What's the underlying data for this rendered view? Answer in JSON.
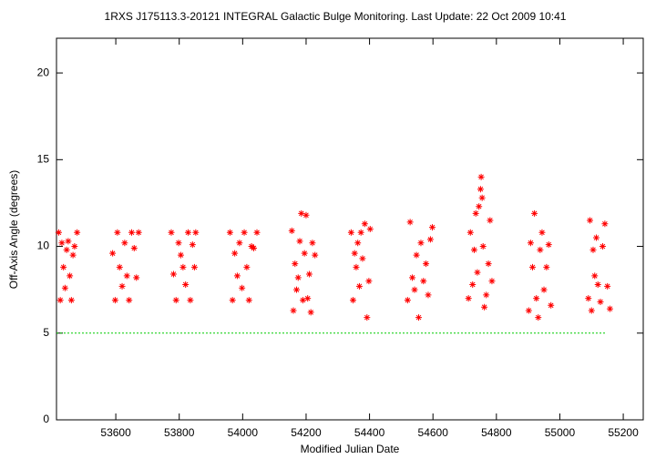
{
  "chart_data": {
    "type": "scatter",
    "title": "1RXS J175113.3-20121   INTEGRAL Galactic Bulge Monitoring.  Last Update: 22 Oct 2009 10:41",
    "x_label": "Modified Julian Date",
    "y_label": "Off-Axis Angle (degrees)",
    "xlim": [
      53413,
      55263
    ],
    "ylim": [
      0,
      22
    ],
    "xticks": [
      53600,
      53800,
      54000,
      54200,
      54400,
      54600,
      54800,
      55000,
      55200
    ],
    "yticks": [
      0,
      5,
      10,
      15,
      20
    ],
    "grid": false,
    "reference_line": {
      "y": 5,
      "x": [
        53413,
        55146
      ],
      "color": "#00cc00"
    },
    "series": [
      {
        "color": "#ff0000",
        "x": [
          53420,
          53425,
          53430,
          53435,
          53440,
          53445,
          53450,
          53455,
          53460,
          53465,
          53470,
          53478,
          53590,
          53598,
          53605,
          53612,
          53620,
          53628,
          53635,
          53642,
          53650,
          53658,
          53665,
          53672,
          53775,
          53782,
          53790,
          53798,
          53805,
          53812,
          53820,
          53828,
          53835,
          53842,
          53848,
          53852,
          53960,
          53968,
          53975,
          53983,
          53990,
          53998,
          54005,
          54013,
          54020,
          54028,
          54035,
          54045,
          54155,
          54160,
          54165,
          54170,
          54175,
          54180,
          54185,
          54190,
          54195,
          54200,
          54205,
          54210,
          54215,
          54220,
          54228,
          54342,
          54348,
          54353,
          54358,
          54363,
          54368,
          54373,
          54378,
          54385,
          54392,
          54398,
          54402,
          54520,
          54528,
          54535,
          54542,
          54548,
          54555,
          54562,
          54570,
          54578,
          54585,
          54592,
          54598,
          54712,
          54718,
          54725,
          54730,
          54735,
          54740,
          54745,
          54750,
          54752,
          54755,
          54758,
          54762,
          54768,
          54775,
          54780,
          54786,
          54902,
          54908,
          54914,
          54920,
          54926,
          54932,
          54938,
          54944,
          54950,
          54958,
          54965,
          54972,
          55090,
          55095,
          55100,
          55105,
          55110,
          55115,
          55120,
          55128,
          55135,
          55142,
          55150,
          55158
        ],
        "values": [
          10.8,
          6.9,
          10.2,
          8.8,
          7.6,
          9.8,
          10.3,
          8.3,
          6.9,
          9.5,
          10.0,
          10.8,
          9.6,
          6.9,
          10.8,
          8.8,
          7.7,
          10.2,
          8.3,
          6.9,
          10.8,
          9.9,
          8.2,
          10.8,
          10.8,
          8.4,
          6.9,
          10.2,
          9.5,
          8.8,
          7.8,
          10.8,
          6.9,
          10.1,
          8.8,
          10.8,
          10.8,
          6.9,
          9.6,
          8.3,
          10.2,
          7.6,
          10.8,
          8.8,
          6.9,
          10.0,
          9.9,
          10.8,
          10.9,
          6.3,
          9.0,
          7.5,
          8.2,
          10.3,
          11.9,
          6.9,
          9.6,
          11.8,
          7.0,
          8.4,
          6.2,
          10.2,
          9.5,
          10.8,
          6.9,
          9.6,
          8.8,
          10.2,
          7.7,
          10.8,
          9.3,
          11.3,
          5.9,
          8.0,
          11.0,
          6.9,
          11.4,
          8.2,
          7.5,
          9.5,
          5.9,
          10.2,
          8.0,
          9.0,
          7.2,
          10.4,
          11.1,
          7.0,
          10.8,
          7.8,
          9.8,
          11.9,
          8.5,
          12.3,
          13.3,
          14.0,
          12.8,
          10.0,
          6.5,
          7.2,
          9.0,
          11.5,
          8.0,
          6.3,
          10.2,
          8.8,
          11.9,
          7.0,
          5.9,
          9.8,
          10.8,
          7.5,
          8.8,
          10.1,
          6.6,
          7.0,
          11.5,
          6.3,
          9.8,
          8.3,
          10.5,
          7.8,
          6.8,
          10.0,
          11.3,
          7.7,
          6.4
        ]
      }
    ]
  }
}
